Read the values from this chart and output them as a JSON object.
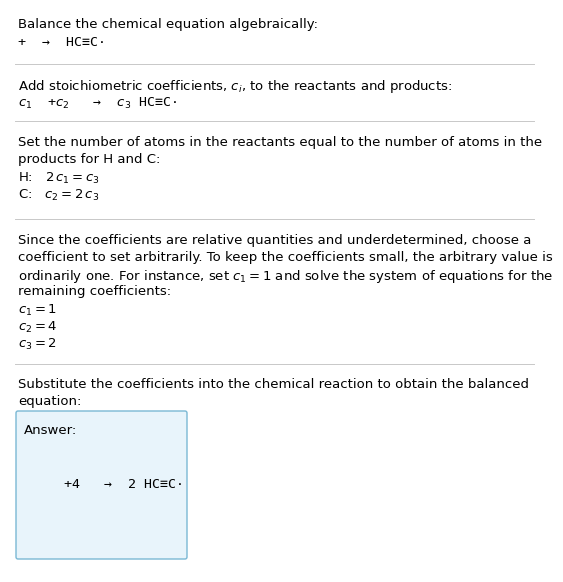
{
  "title": "Balance the chemical equation algebraically:",
  "line1": "+  →  HC≡C·",
  "section2_header": "Add stoichiometric coefficients, $c_i$, to the reactants and products:",
  "section2_line": "$c_1$  +$c_2$   →  $c_3$ HC≡C·",
  "section3_line1": "Set the number of atoms in the reactants equal to the number of atoms in the",
  "section3_line2": "products for H and C:",
  "section3_H": "H:   $2\\,c_1 = c_3$",
  "section3_C": "C:   $c_2 = 2\\,c_3$",
  "section4_line1": "Since the coefficients are relative quantities and underdetermined, choose a",
  "section4_line2": "coefficient to set arbitrarily. To keep the coefficients small, the arbitrary value is",
  "section4_line3": "ordinarily one. For instance, set $c_1 = 1$ and solve the system of equations for the",
  "section4_line4": "remaining coefficients:",
  "section4_c1": "$c_1 = 1$",
  "section4_c2": "$c_2 = 4$",
  "section4_c3": "$c_3 = 2$",
  "section5_line1": "Substitute the coefficients into the chemical reaction to obtain the balanced",
  "section5_line2": "equation:",
  "answer_label": "Answer:",
  "answer_line": "     +4   →  2 HC≡C·",
  "bg_color": "#ffffff",
  "answer_box_color": "#e8f4fb",
  "answer_box_border": "#7ab8d4",
  "text_color": "#000000",
  "separator_color": "#c8c8c8",
  "font_size": 9.5,
  "mono_font": "DejaVu Sans Mono"
}
